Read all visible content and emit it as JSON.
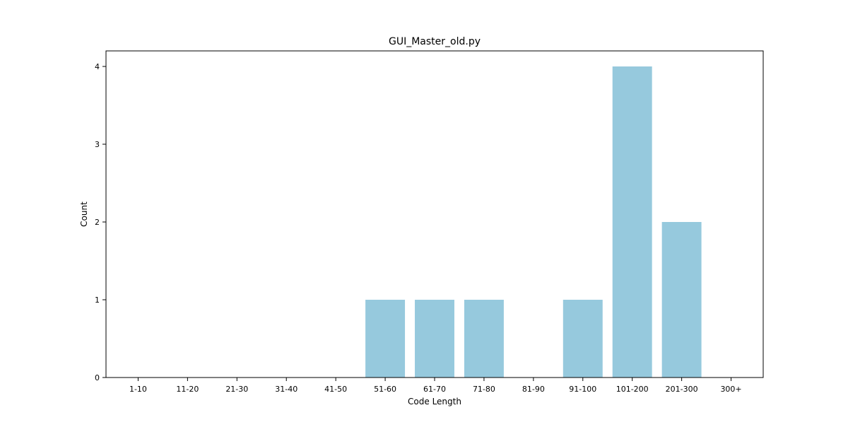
{
  "chart_data": {
    "type": "bar",
    "title": "GUI_Master_old.py",
    "xlabel": "Code Length",
    "ylabel": "Count",
    "categories": [
      "1-10",
      "11-20",
      "21-30",
      "31-40",
      "41-50",
      "51-60",
      "61-70",
      "71-80",
      "81-90",
      "91-100",
      "101-200",
      "201-300",
      "300+"
    ],
    "values": [
      0,
      0,
      0,
      0,
      0,
      1,
      1,
      1,
      0,
      1,
      4,
      2,
      0
    ],
    "ylim": [
      0,
      4.2
    ],
    "yticks": [
      0,
      1,
      2,
      3,
      4
    ],
    "grid": false,
    "legend": "none",
    "bar_color": "#96c9dd"
  }
}
